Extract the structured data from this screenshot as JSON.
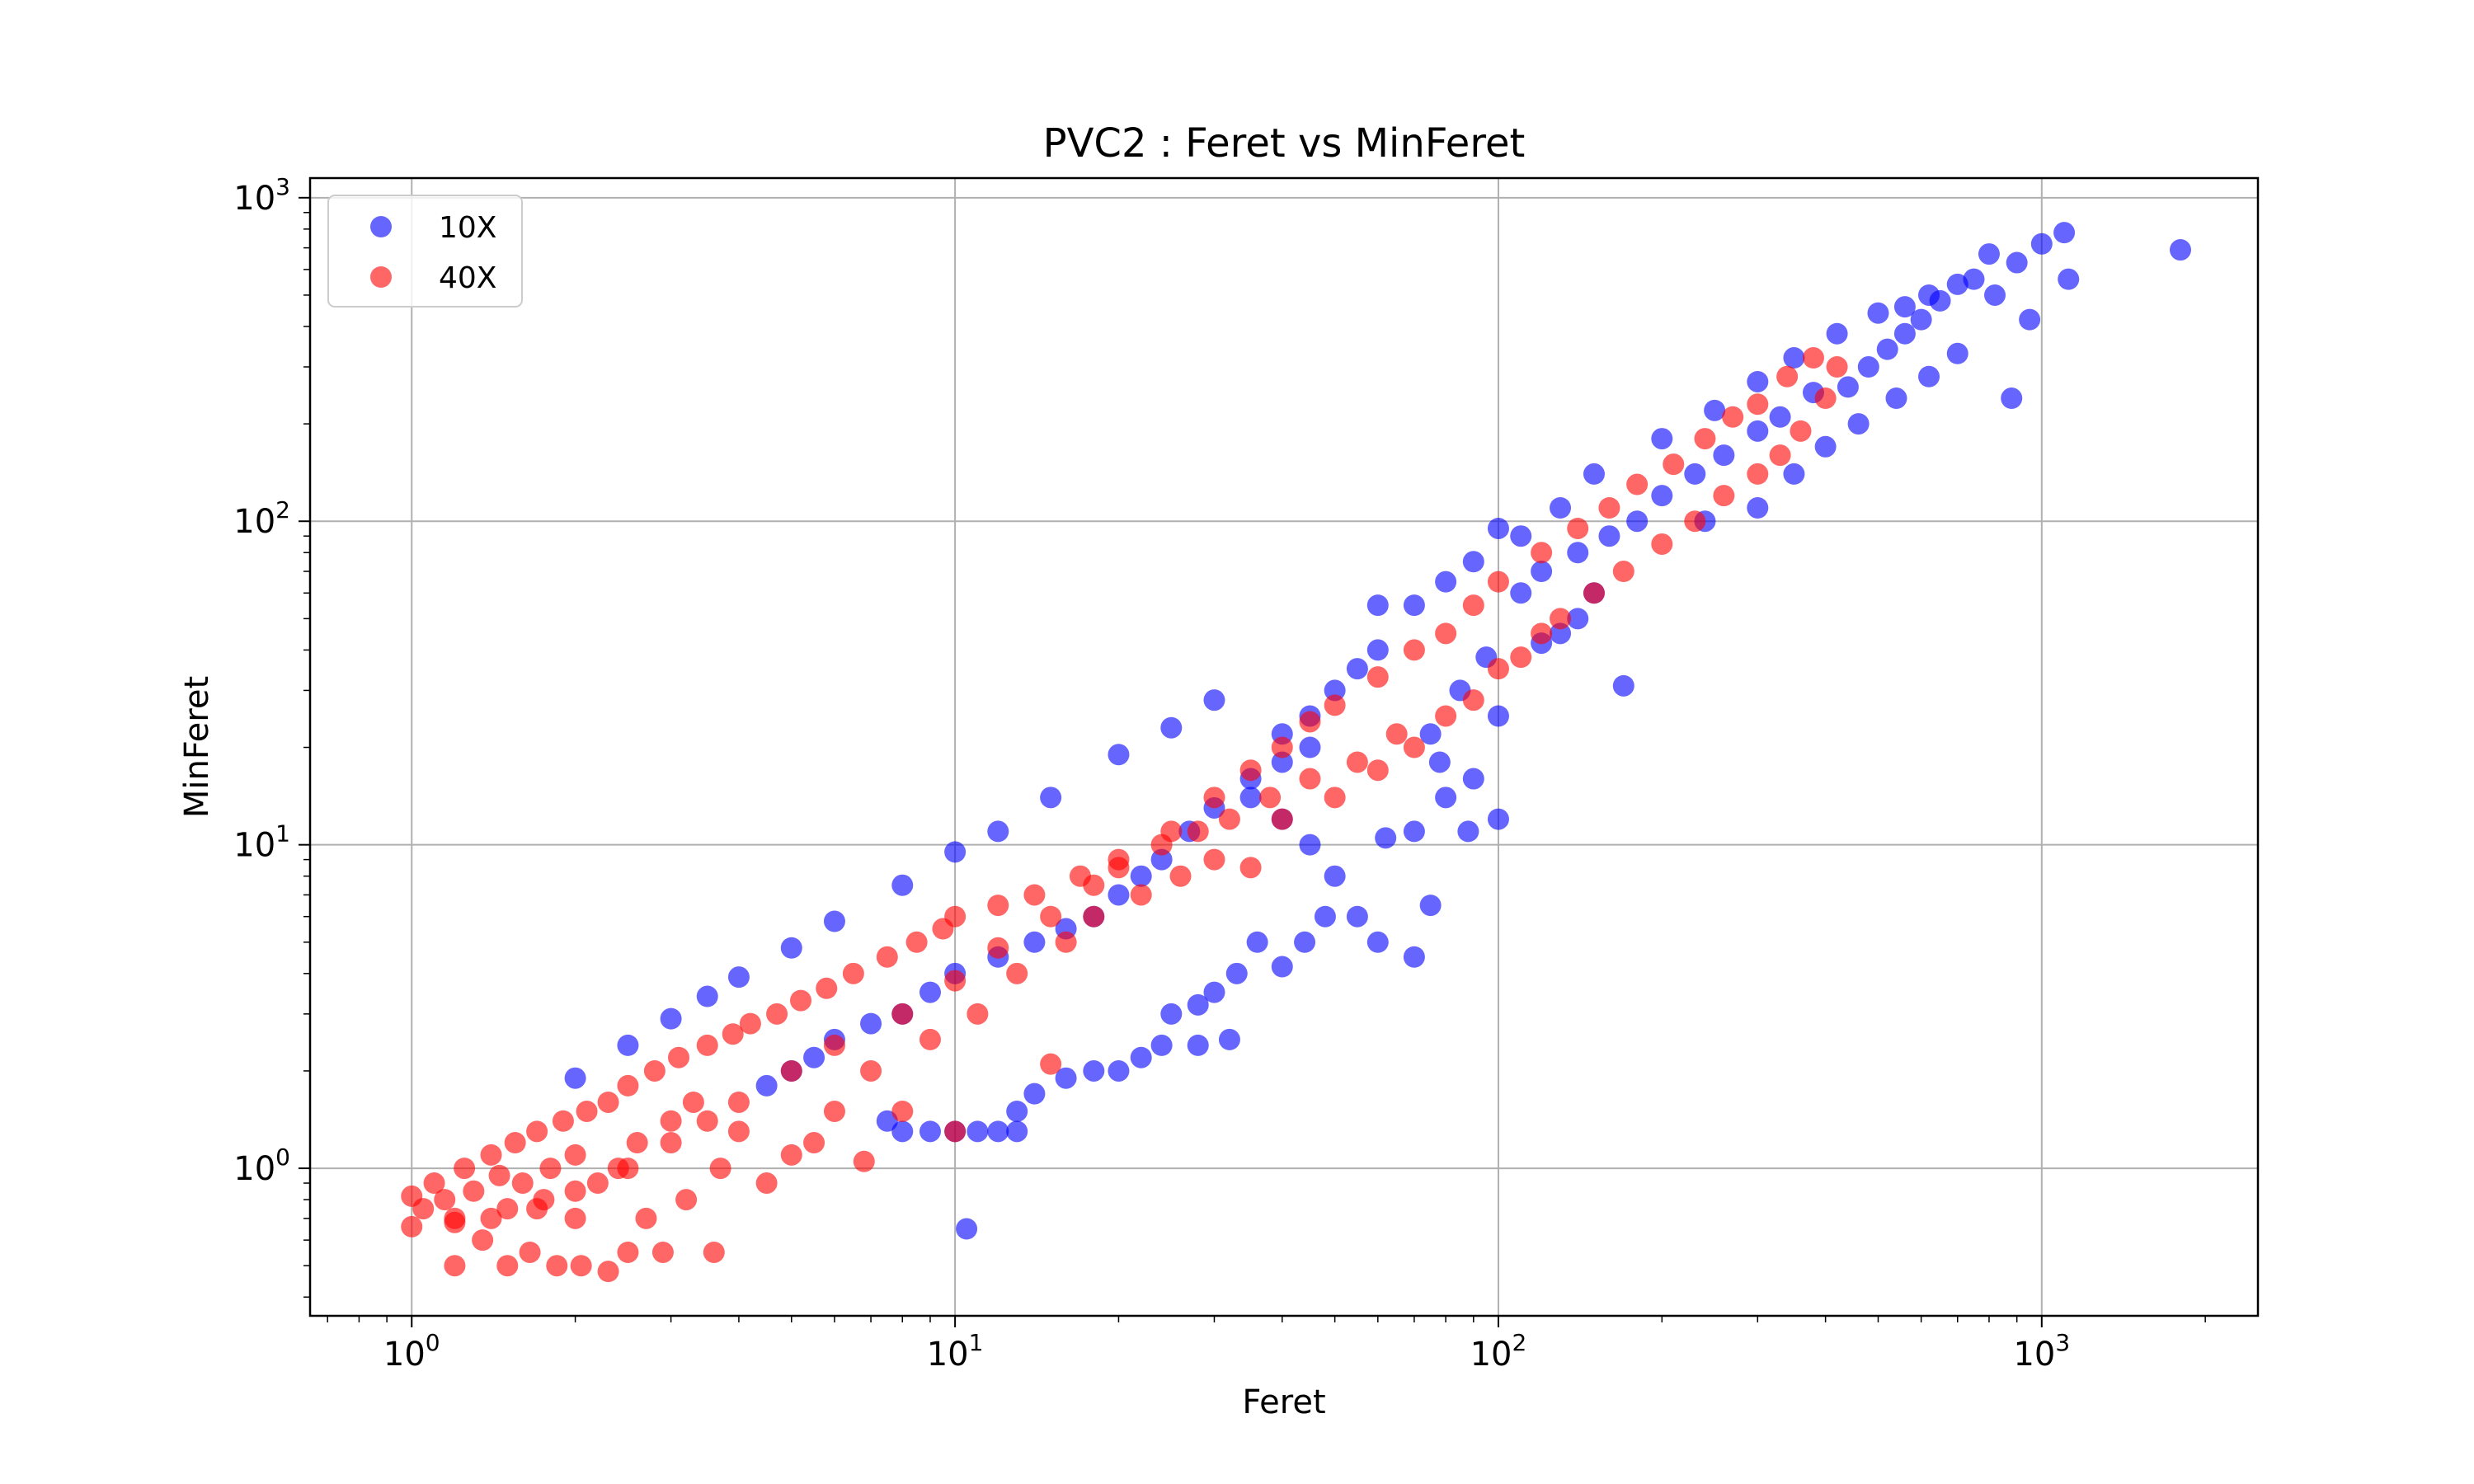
{
  "chart_data": {
    "type": "scatter",
    "title": "PVC2 : Feret vs MinFeret",
    "xlabel": "Feret",
    "ylabel": "MinFeret",
    "xscale": "log",
    "yscale": "log",
    "xlim": [
      0.65,
      2500
    ],
    "ylim": [
      0.35,
      1150
    ],
    "grid": true,
    "legend_position": "top-left",
    "xticks": [
      {
        "value": 1,
        "base": "10",
        "exp": "0"
      },
      {
        "value": 10,
        "base": "10",
        "exp": "1"
      },
      {
        "value": 100,
        "base": "10",
        "exp": "2"
      },
      {
        "value": 1000,
        "base": "10",
        "exp": "3"
      }
    ],
    "yticks": [
      {
        "value": 1,
        "base": "10",
        "exp": "0"
      },
      {
        "value": 10,
        "base": "10",
        "exp": "1"
      },
      {
        "value": 100,
        "base": "10",
        "exp": "2"
      },
      {
        "value": 1000,
        "base": "10",
        "exp": "3"
      }
    ],
    "series": [
      {
        "name": "10X",
        "color": "#0000ff",
        "opacity": 0.6,
        "points": [
          [
            1800,
            690
          ],
          [
            1100,
            780
          ],
          [
            1000,
            720
          ],
          [
            1120,
            560
          ],
          [
            900,
            630
          ],
          [
            800,
            670
          ],
          [
            750,
            560
          ],
          [
            820,
            500
          ],
          [
            950,
            420
          ],
          [
            700,
            540
          ],
          [
            650,
            480
          ],
          [
            600,
            420
          ],
          [
            560,
            380
          ],
          [
            520,
            340
          ],
          [
            480,
            300
          ],
          [
            440,
            260
          ],
          [
            700,
            330
          ],
          [
            620,
            280
          ],
          [
            540,
            240
          ],
          [
            460,
            200
          ],
          [
            880,
            240
          ],
          [
            380,
            250
          ],
          [
            330,
            210
          ],
          [
            300,
            190
          ],
          [
            260,
            160
          ],
          [
            230,
            140
          ],
          [
            400,
            170
          ],
          [
            350,
            140
          ],
          [
            300,
            110
          ],
          [
            240,
            100
          ],
          [
            200,
            120
          ],
          [
            180,
            100
          ],
          [
            160,
            90
          ],
          [
            140,
            80
          ],
          [
            120,
            70
          ],
          [
            110,
            60
          ],
          [
            150,
            60
          ],
          [
            140,
            50
          ],
          [
            130,
            45
          ],
          [
            170,
            31
          ],
          [
            120,
            42
          ],
          [
            95,
            38
          ],
          [
            85,
            30
          ],
          [
            100,
            25
          ],
          [
            75,
            22
          ],
          [
            90,
            16
          ],
          [
            80,
            14
          ],
          [
            100,
            12
          ],
          [
            88,
            11
          ],
          [
            78,
            18
          ],
          [
            70,
            11
          ],
          [
            62,
            10.5
          ],
          [
            75,
            6.5
          ],
          [
            70,
            4.5
          ],
          [
            60,
            5
          ],
          [
            55,
            6
          ],
          [
            50,
            8
          ],
          [
            45,
            10
          ],
          [
            40,
            12
          ],
          [
            35,
            14
          ],
          [
            48,
            6
          ],
          [
            44,
            5
          ],
          [
            40,
            4.2
          ],
          [
            36,
            5
          ],
          [
            33,
            4
          ],
          [
            30,
            3.5
          ],
          [
            28,
            3.2
          ],
          [
            25,
            3.0
          ],
          [
            32,
            2.5
          ],
          [
            28,
            2.4
          ],
          [
            24,
            2.4
          ],
          [
            22,
            2.2
          ],
          [
            20,
            2.0
          ],
          [
            18,
            2.0
          ],
          [
            16,
            1.9
          ],
          [
            14,
            1.7
          ],
          [
            13,
            1.5
          ],
          [
            12,
            1.3
          ],
          [
            11,
            1.3
          ],
          [
            10,
            1.3
          ],
          [
            9,
            1.3
          ],
          [
            8,
            1.3
          ],
          [
            7.5,
            1.4
          ],
          [
            10.5,
            0.65
          ],
          [
            13,
            1.3
          ],
          [
            45,
            20
          ],
          [
            40,
            18
          ],
          [
            35,
            16
          ],
          [
            30,
            13
          ],
          [
            27,
            11
          ],
          [
            24,
            9
          ],
          [
            22,
            8
          ],
          [
            20,
            7
          ],
          [
            18,
            6
          ],
          [
            16,
            5.5
          ],
          [
            14,
            5
          ],
          [
            12,
            4.5
          ],
          [
            10,
            4
          ],
          [
            9,
            3.5
          ],
          [
            8,
            3
          ],
          [
            7,
            2.8
          ],
          [
            6,
            2.5
          ],
          [
            5.5,
            2.2
          ],
          [
            5,
            2
          ],
          [
            4.5,
            1.8
          ],
          [
            60,
            40
          ],
          [
            55,
            35
          ],
          [
            50,
            30
          ],
          [
            45,
            25
          ],
          [
            40,
            22
          ],
          [
            70,
            55
          ],
          [
            80,
            65
          ],
          [
            90,
            75
          ],
          [
            110,
            90
          ],
          [
            130,
            110
          ],
          [
            200,
            180
          ],
          [
            250,
            220
          ],
          [
            300,
            270
          ],
          [
            350,
            320
          ],
          [
            420,
            380
          ],
          [
            500,
            440
          ],
          [
            560,
            460
          ],
          [
            620,
            500
          ],
          [
            30,
            28
          ],
          [
            25,
            23
          ],
          [
            20,
            19
          ],
          [
            15,
            14
          ],
          [
            12,
            11
          ],
          [
            10,
            9.5
          ],
          [
            8,
            7.5
          ],
          [
            6,
            5.8
          ],
          [
            5,
            4.8
          ],
          [
            4,
            3.9
          ],
          [
            3.5,
            3.4
          ],
          [
            3,
            2.9
          ],
          [
            2.5,
            2.4
          ],
          [
            2,
            1.9
          ],
          [
            60,
            55
          ],
          [
            100,
            95
          ],
          [
            150,
            140
          ]
        ]
      },
      {
        "name": "40X",
        "color": "#ff0000",
        "opacity": 0.6,
        "points": [
          [
            1.0,
            0.82
          ],
          [
            1.0,
            0.66
          ],
          [
            1.05,
            0.75
          ],
          [
            1.1,
            0.9
          ],
          [
            1.15,
            0.8
          ],
          [
            1.2,
            0.7
          ],
          [
            1.2,
            0.5
          ],
          [
            1.25,
            1.0
          ],
          [
            1.3,
            0.85
          ],
          [
            1.35,
            0.6
          ],
          [
            1.4,
            1.1
          ],
          [
            1.45,
            0.95
          ],
          [
            1.5,
            0.5
          ],
          [
            1.5,
            0.75
          ],
          [
            1.55,
            1.2
          ],
          [
            1.6,
            0.9
          ],
          [
            1.65,
            0.55
          ],
          [
            1.7,
            1.3
          ],
          [
            1.75,
            0.8
          ],
          [
            1.8,
            1.0
          ],
          [
            1.85,
            0.5
          ],
          [
            1.9,
            1.4
          ],
          [
            2.0,
            0.7
          ],
          [
            2.0,
            1.1
          ],
          [
            2.05,
            0.5
          ],
          [
            2.1,
            1.5
          ],
          [
            2.2,
            0.9
          ],
          [
            2.3,
            0.48
          ],
          [
            2.3,
            1.6
          ],
          [
            2.4,
            1.0
          ],
          [
            2.5,
            0.55
          ],
          [
            2.5,
            1.8
          ],
          [
            2.6,
            1.2
          ],
          [
            2.7,
            0.7
          ],
          [
            2.8,
            2.0
          ],
          [
            2.9,
            0.55
          ],
          [
            3.0,
            1.4
          ],
          [
            3.1,
            2.2
          ],
          [
            3.2,
            0.8
          ],
          [
            3.3,
            1.6
          ],
          [
            3.5,
            2.4
          ],
          [
            3.6,
            0.55
          ],
          [
            3.7,
            1.0
          ],
          [
            3.9,
            2.6
          ],
          [
            4.0,
            1.3
          ],
          [
            4.2,
            2.8
          ],
          [
            4.5,
            0.9
          ],
          [
            4.7,
            3.0
          ],
          [
            5.0,
            1.1
          ],
          [
            5.2,
            3.3
          ],
          [
            5.5,
            1.2
          ],
          [
            5.8,
            3.6
          ],
          [
            6.0,
            1.5
          ],
          [
            6.5,
            4.0
          ],
          [
            6.8,
            1.05
          ],
          [
            7.0,
            2.0
          ],
          [
            7.5,
            4.5
          ],
          [
            8.0,
            1.5
          ],
          [
            8.5,
            5.0
          ],
          [
            9.0,
            2.5
          ],
          [
            9.5,
            5.5
          ],
          [
            10,
            1.3
          ],
          [
            10,
            6.0
          ],
          [
            11,
            3.0
          ],
          [
            12,
            6.5
          ],
          [
            13,
            4.0
          ],
          [
            14,
            7.0
          ],
          [
            15,
            2.1
          ],
          [
            16,
            5.0
          ],
          [
            17,
            8.0
          ],
          [
            18,
            6.0
          ],
          [
            20,
            9.0
          ],
          [
            22,
            7.0
          ],
          [
            24,
            10
          ],
          [
            26,
            8.0
          ],
          [
            28,
            11
          ],
          [
            30,
            9.0
          ],
          [
            32,
            12
          ],
          [
            35,
            8.5
          ],
          [
            38,
            14
          ],
          [
            40,
            12
          ],
          [
            45,
            16
          ],
          [
            50,
            14
          ],
          [
            55,
            18
          ],
          [
            60,
            17
          ],
          [
            65,
            22
          ],
          [
            70,
            20
          ],
          [
            80,
            25
          ],
          [
            90,
            28
          ],
          [
            100,
            35
          ],
          [
            110,
            38
          ],
          [
            120,
            45
          ],
          [
            130,
            50
          ],
          [
            150,
            60
          ],
          [
            170,
            70
          ],
          [
            200,
            85
          ],
          [
            230,
            100
          ],
          [
            260,
            120
          ],
          [
            300,
            140
          ],
          [
            330,
            160
          ],
          [
            360,
            190
          ],
          [
            400,
            240
          ],
          [
            420,
            300
          ],
          [
            380,
            320
          ],
          [
            340,
            280
          ],
          [
            300,
            230
          ],
          [
            270,
            210
          ],
          [
            240,
            180
          ],
          [
            210,
            150
          ],
          [
            180,
            130
          ],
          [
            160,
            110
          ],
          [
            140,
            95
          ],
          [
            120,
            80
          ],
          [
            100,
            65
          ],
          [
            90,
            55
          ],
          [
            80,
            45
          ],
          [
            70,
            40
          ],
          [
            60,
            33
          ],
          [
            50,
            27
          ],
          [
            45,
            24
          ],
          [
            40,
            20
          ],
          [
            35,
            17
          ],
          [
            30,
            14
          ],
          [
            25,
            11
          ],
          [
            20,
            8.5
          ],
          [
            18,
            7.5
          ],
          [
            15,
            6
          ],
          [
            12,
            4.8
          ],
          [
            10,
            3.8
          ],
          [
            8,
            3.0
          ],
          [
            6,
            2.4
          ],
          [
            5,
            2.0
          ],
          [
            4,
            1.6
          ],
          [
            3.5,
            1.4
          ],
          [
            3,
            1.2
          ],
          [
            2.5,
            1.0
          ],
          [
            2,
            0.85
          ],
          [
            1.7,
            0.75
          ],
          [
            1.4,
            0.7
          ],
          [
            1.2,
            0.68
          ]
        ]
      }
    ]
  }
}
